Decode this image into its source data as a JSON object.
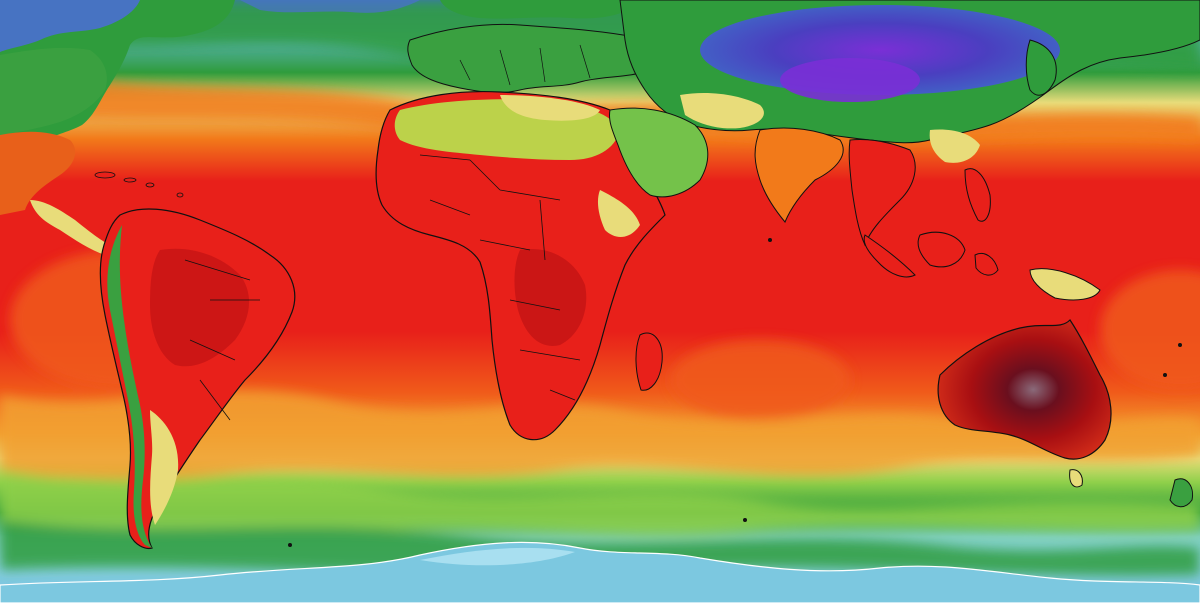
{
  "map": {
    "kind": "global surface temperature field",
    "projection": "equirectangular",
    "labels_shown": false,
    "palette": {
      "extreme_cold": "#7a2fd6",
      "very_cold": "#3f3fb8",
      "cold": "#5f8fd8",
      "cool": "#8fd6e8",
      "mild": "#2f9c3c",
      "temperate": "#74c24a",
      "warm": "#e8dc7a",
      "hot": "#f27a1a",
      "very_hot": "#e8201a",
      "extreme_hot": "#a80f12",
      "peak_hot": "#6a0f1e",
      "coastline": "#111111"
    },
    "layers": [
      "temperature-bands",
      "continents",
      "country-borders",
      "coastlines"
    ]
  }
}
